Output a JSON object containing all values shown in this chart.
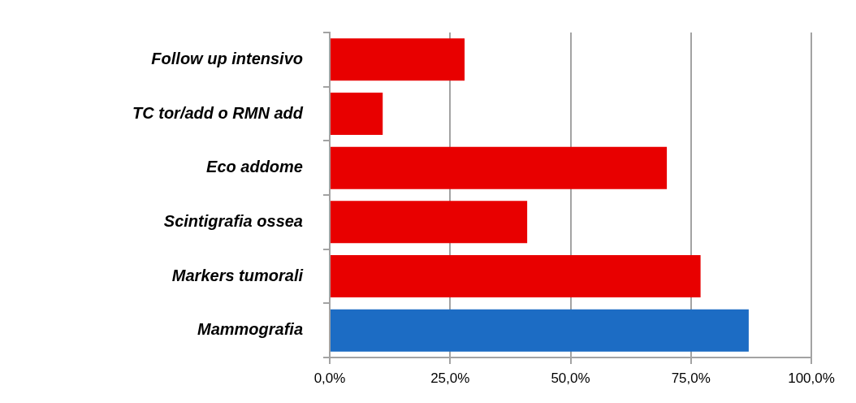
{
  "chart_data": {
    "type": "bar",
    "orientation": "horizontal",
    "categories": [
      "Follow up intensivo",
      "TC tor/add o RMN add",
      "Eco addome",
      "Scintigrafia ossea",
      "Markers tumorali",
      "Mammografia"
    ],
    "values": [
      28,
      11,
      70,
      41,
      77,
      87
    ],
    "colors": [
      "#e80000",
      "#e80000",
      "#e80000",
      "#e80000",
      "#e80000",
      "#1c6cc4"
    ],
    "xlim": [
      0,
      100
    ],
    "xticks": [
      {
        "value": 0,
        "label": "0,0%"
      },
      {
        "value": 25,
        "label": "25,0%"
      },
      {
        "value": 50,
        "label": "50,0%"
      },
      {
        "value": 75,
        "label": "75,0%"
      },
      {
        "value": 100,
        "label": "100,0%"
      }
    ],
    "grid": "x"
  }
}
